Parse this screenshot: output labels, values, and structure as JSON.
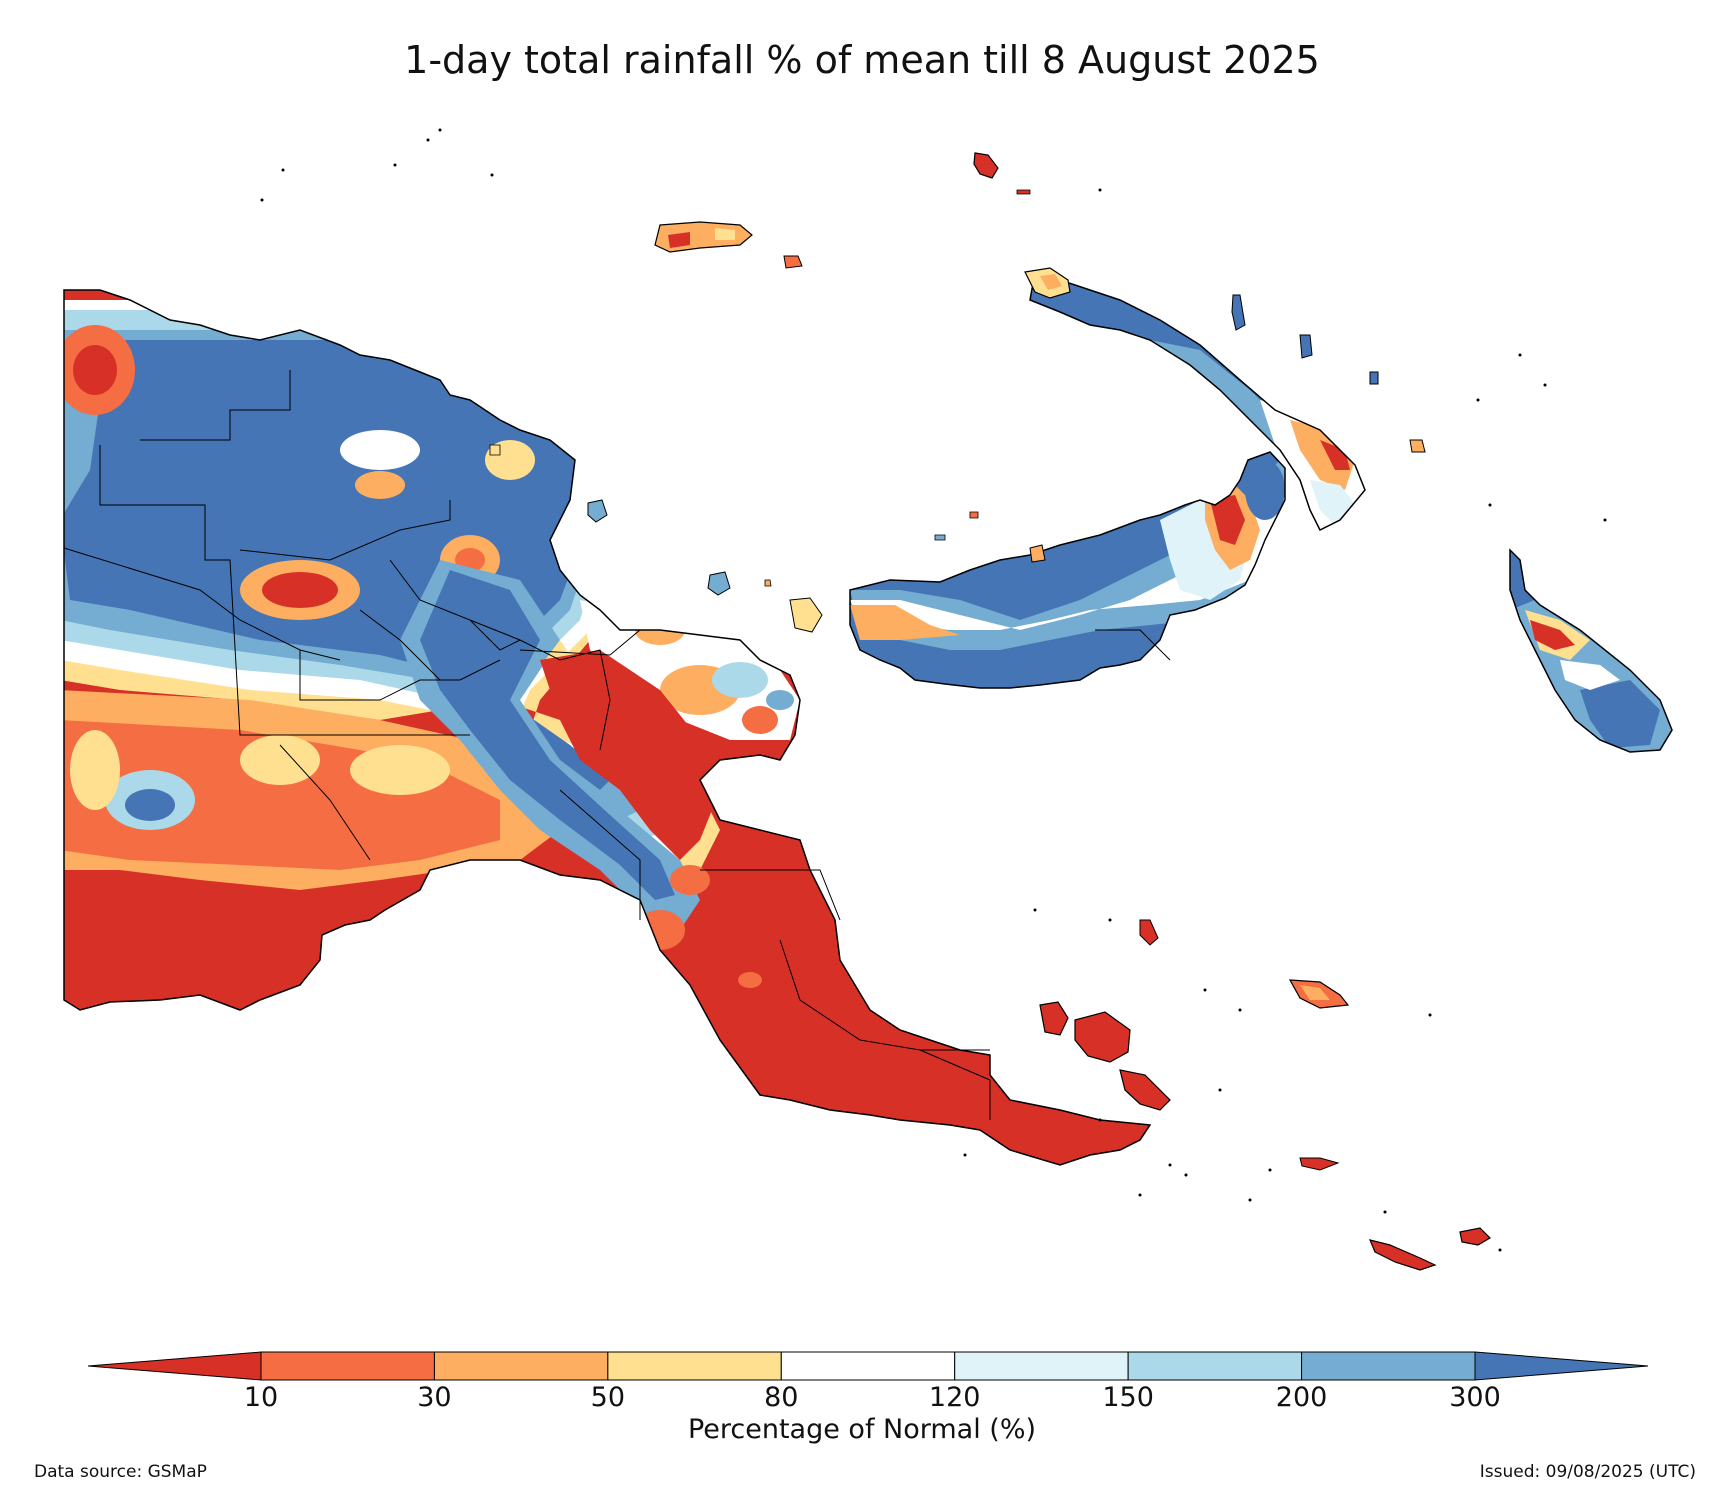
{
  "title": "1-day total rainfall % of mean till 8 August 2025",
  "colorbar": {
    "label": "Percentage of Normal (%)",
    "ticks": [
      "10",
      "30",
      "50",
      "80",
      "120",
      "150",
      "200",
      "300"
    ],
    "under_color": "#d73027",
    "over_color": "#4575b4",
    "bin_colors": [
      "#f46d43",
      "#fdae61",
      "#fee090",
      "#ffffff",
      "#e0f3f8",
      "#abd9e9",
      "#74add1"
    ]
  },
  "legend_colors": {
    "lt10": "#d73027",
    "10-30": "#f46d43",
    "30-50": "#fdae61",
    "50-80": "#fee090",
    "80-120": "#ffffff",
    "120-150": "#e0f3f8",
    "150-200": "#abd9e9",
    "200-300": "#74add1",
    "gt300": "#4575b4"
  },
  "footer": {
    "source": "Data source: GSMaP",
    "issued": "Issued: 09/08/2025 (UTC)"
  }
}
